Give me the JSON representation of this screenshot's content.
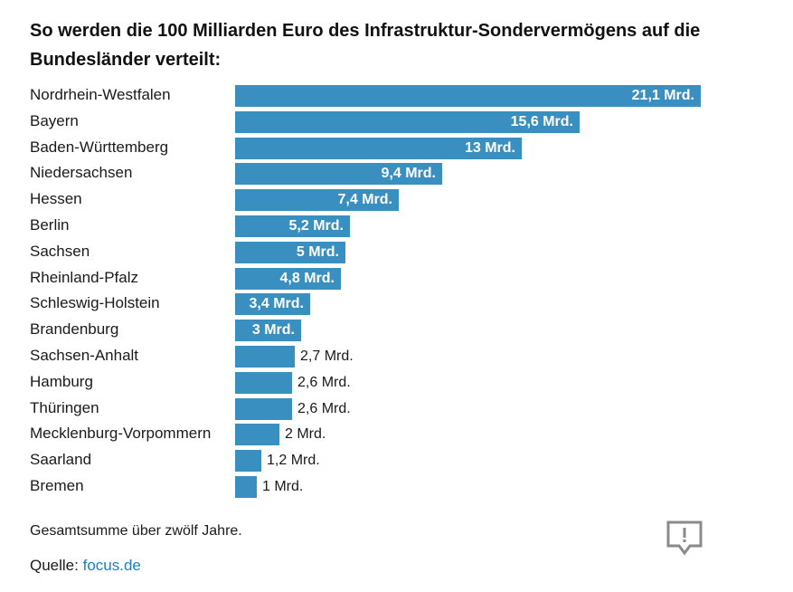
{
  "title": "So werden die 100 Milliarden Euro des Infrastruktur-Sondervermögens auf die Bundesländer verteilt:",
  "note": "Gesamtsumme über zwölf Jahre.",
  "source_label": "Quelle:",
  "source_link": "focus.de",
  "colors": {
    "bar": "#3a8fc1",
    "link": "#1b7fc4"
  },
  "icons": {
    "feedback": "feedback-icon"
  },
  "chart_data": {
    "type": "bar",
    "orientation": "horizontal",
    "title": "So werden die 100 Milliarden Euro des Infrastruktur-Sondervermögens auf die Bundesländer verteilt:",
    "unit": "Mrd.",
    "categories": [
      "Nordrhein-Westfalen",
      "Bayern",
      "Baden-Württemberg",
      "Niedersachsen",
      "Hessen",
      "Berlin",
      "Sachsen",
      "Rheinland-Pfalz",
      "Schleswig-Holstein",
      "Brandenburg",
      "Sachsen-Anhalt",
      "Hamburg",
      "Thüringen",
      "Mecklenburg-Vorpommern",
      "Saarland",
      "Bremen"
    ],
    "values": [
      21.1,
      15.6,
      13,
      9.4,
      7.4,
      5.2,
      5,
      4.8,
      3.4,
      3,
      2.7,
      2.6,
      2.6,
      2,
      1.2,
      1
    ],
    "value_labels": [
      "21,1 Mrd.",
      "15,6 Mrd.",
      "13 Mrd.",
      "9,4 Mrd.",
      "7,4 Mrd.",
      "5,2 Mrd.",
      "5 Mrd.",
      "4,8 Mrd.",
      "3,4 Mrd.",
      "3 Mrd.",
      "2,7 Mrd.",
      "2,6 Mrd.",
      "2,6 Mrd.",
      "2 Mrd.",
      "1,2 Mrd.",
      "1 Mrd."
    ],
    "xlim": [
      0,
      21.1
    ],
    "grid": false,
    "legend": "none"
  }
}
